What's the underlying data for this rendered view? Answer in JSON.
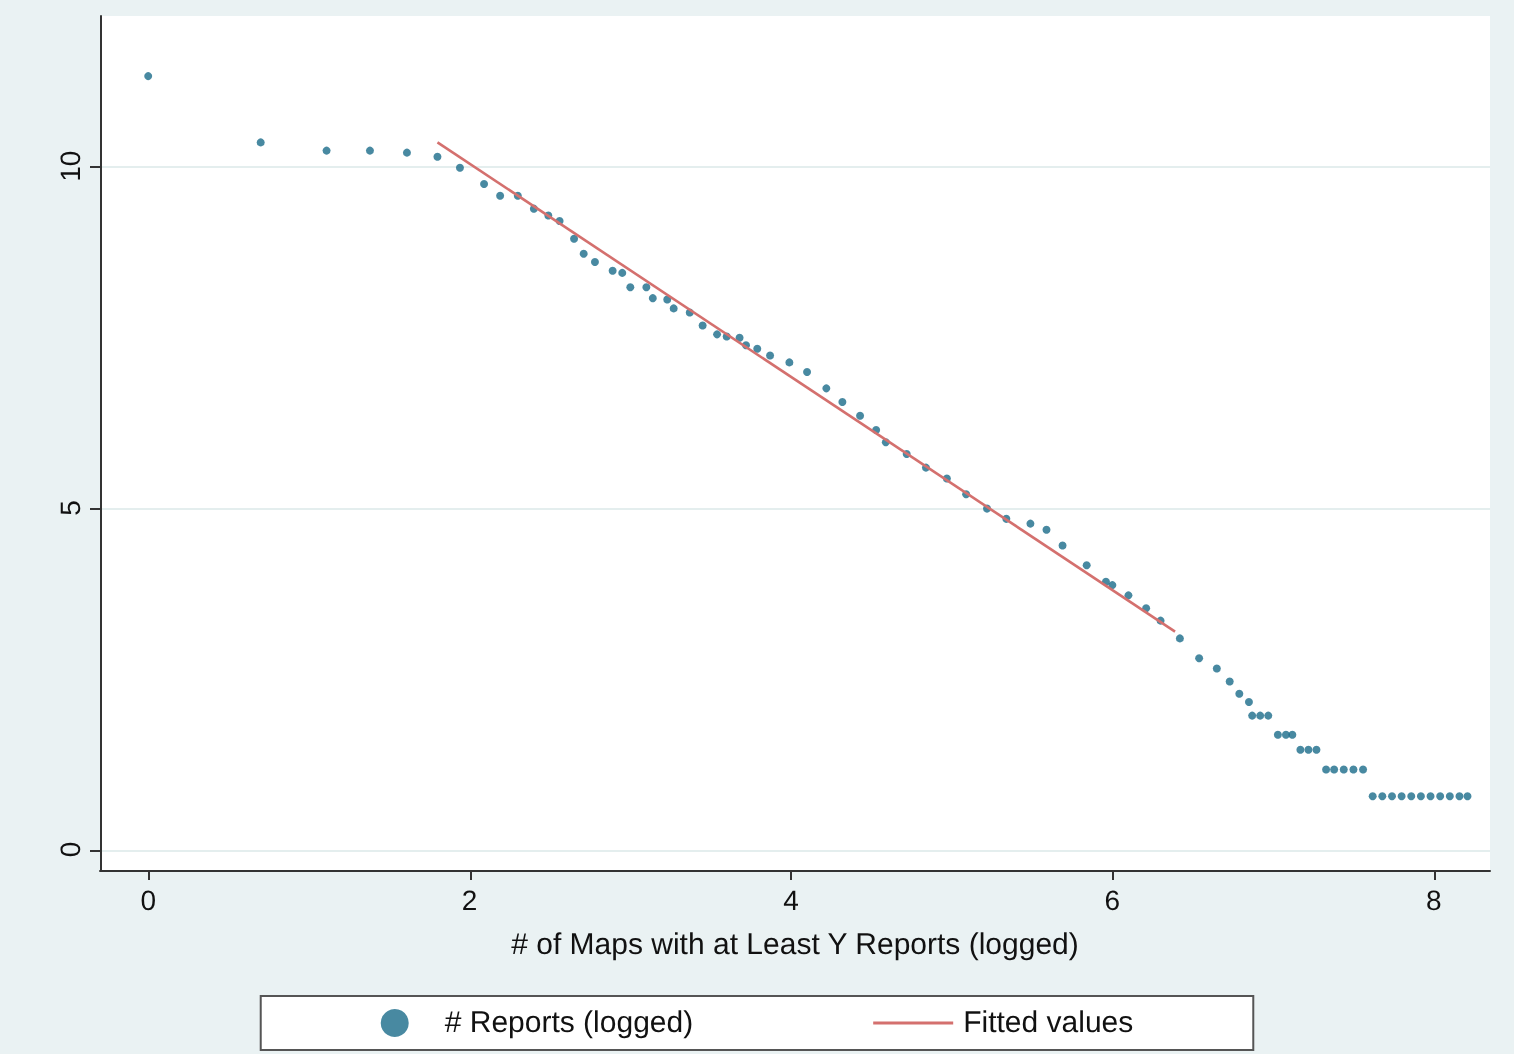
{
  "chart_data": {
    "type": "scatter",
    "xlabel": "# of Maps with at Least Y Reports (logged)",
    "xlim": [
      -0.3,
      8.35
    ],
    "ylim": [
      -0.3,
      12.2
    ],
    "xticks": [
      0,
      2,
      4,
      6,
      8
    ],
    "yticks": [
      0,
      5,
      10
    ],
    "grid": "y",
    "legend": "bottom",
    "marker": "circle",
    "series": [
      {
        "name": "# Reports (logged)",
        "color": "#1a6b8a",
        "x": [
          0,
          0.7,
          1.11,
          1.38,
          1.61,
          1.8,
          1.94,
          2.09,
          2.19,
          2.3,
          2.4,
          2.49,
          2.56,
          2.65,
          2.71,
          2.78,
          2.89,
          2.95,
          3.0,
          3.1,
          3.14,
          3.23,
          3.27,
          3.37,
          3.45,
          3.54,
          3.6,
          3.68,
          3.72,
          3.79,
          3.87,
          3.99,
          4.1,
          4.22,
          4.32,
          4.43,
          4.53,
          4.59,
          4.72,
          4.84,
          4.97,
          5.09,
          5.22,
          5.34,
          5.49,
          5.59,
          5.69,
          5.84,
          5.96,
          6.0,
          6.1,
          6.21,
          6.3,
          6.42,
          6.54,
          6.65,
          6.73,
          6.79,
          6.85,
          6.87,
          6.92,
          6.97,
          7.03,
          7.08,
          7.12,
          7.17,
          7.22,
          7.27,
          7.33,
          7.38,
          7.44,
          7.5,
          7.56,
          7.62,
          7.68,
          7.74,
          7.8,
          7.86,
          7.92,
          7.98,
          8.04,
          8.1,
          8.16,
          8.21
        ],
        "values": [
          11.32,
          10.35,
          10.23,
          10.23,
          10.2,
          10.14,
          9.98,
          9.74,
          9.57,
          9.57,
          9.38,
          9.28,
          9.2,
          8.94,
          8.72,
          8.6,
          8.47,
          8.44,
          8.23,
          8.23,
          8.07,
          8.05,
          7.92,
          7.86,
          7.67,
          7.54,
          7.51,
          7.49,
          7.38,
          7.33,
          7.23,
          7.13,
          6.99,
          6.75,
          6.55,
          6.35,
          6.14,
          5.96,
          5.79,
          5.59,
          5.43,
          5.2,
          4.99,
          4.84,
          4.77,
          4.68,
          4.45,
          4.16,
          3.92,
          3.87,
          3.72,
          3.53,
          3.35,
          3.09,
          2.8,
          2.65,
          2.46,
          2.28,
          2.16,
          1.96,
          1.96,
          1.96,
          1.68,
          1.68,
          1.68,
          1.46,
          1.46,
          1.46,
          1.17,
          1.17,
          1.17,
          1.17,
          1.17,
          0.78,
          0.78,
          0.78,
          0.78,
          0.78,
          0.78,
          0.78,
          0.78,
          0.78,
          0.78,
          0.78
        ]
      },
      {
        "name": "Fitted values",
        "type": "line",
        "marker": "none",
        "color": "#d4706e",
        "x": [
          1.8,
          6.39
        ],
        "values": [
          10.35,
          3.19
        ]
      }
    ]
  }
}
